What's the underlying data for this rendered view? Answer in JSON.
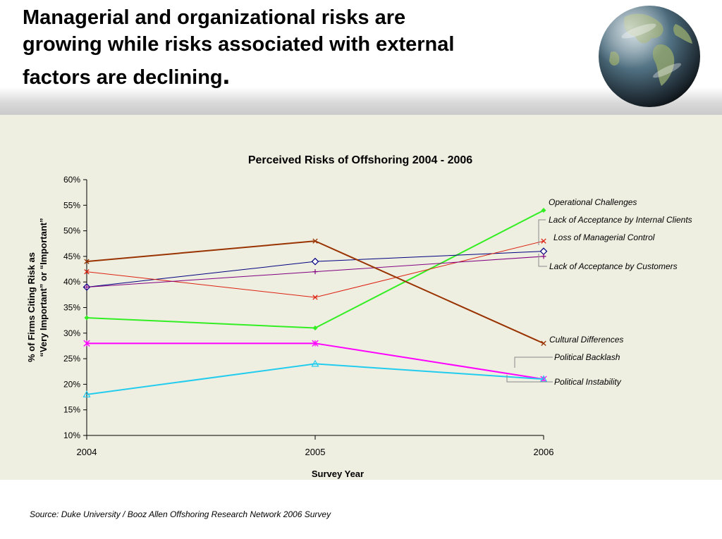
{
  "slide": {
    "title_lines": [
      "Managerial and organizational risks are",
      "growing while risks associated with external",
      "factors are declining"
    ],
    "title_end": ".",
    "source": "Source:  Duke University / Booz Allen Offshoring Research Network 2006 Survey"
  },
  "decoration": {
    "globe": "earth-globe-icon"
  },
  "chart_data": {
    "type": "line",
    "title": "Perceived Risks of Offshoring 2004 - 2006",
    "xlabel": "Survey Year",
    "ylabel_lines": [
      "% of Firms Citing Risk as",
      "“Very Important” or “Important”"
    ],
    "x": [
      "2004",
      "2005",
      "2006"
    ],
    "ylim": [
      10,
      60
    ],
    "yticks": [
      10,
      15,
      20,
      25,
      30,
      35,
      40,
      45,
      50,
      55,
      60
    ],
    "ytick_labels": [
      "10%",
      "15%",
      "20%",
      "25%",
      "30%",
      "35%",
      "40%",
      "45%",
      "50%",
      "55%",
      "60%"
    ],
    "grid": false,
    "legend": "labels at line ends",
    "series": [
      {
        "name": "Operational Challenges",
        "values": [
          33,
          31,
          54
        ],
        "color": "#33ee22",
        "marker": "diamond-filled"
      },
      {
        "name": "Lack of Acceptance by Internal Clients",
        "values": [
          39,
          44,
          46
        ],
        "color": "#000080",
        "marker": "diamond-open"
      },
      {
        "name": "Loss of Managerial Control",
        "values": [
          42,
          37,
          48
        ],
        "color": "#dd2211",
        "marker": "x"
      },
      {
        "name": "Lack of Acceptance by Customers",
        "values": [
          39,
          42,
          45
        ],
        "color": "#800080",
        "marker": "plus"
      },
      {
        "name": "Cultural Differences",
        "values": [
          44,
          48,
          28
        ],
        "color": "#993300",
        "marker": "x"
      },
      {
        "name": "Political Backlash",
        "values": [
          28,
          28,
          21
        ],
        "color": "#ff00ff",
        "marker": "asterisk"
      },
      {
        "name": "Political Instability",
        "values": [
          18,
          24,
          21
        ],
        "color": "#22ccee",
        "marker": "triangle-open"
      }
    ]
  }
}
